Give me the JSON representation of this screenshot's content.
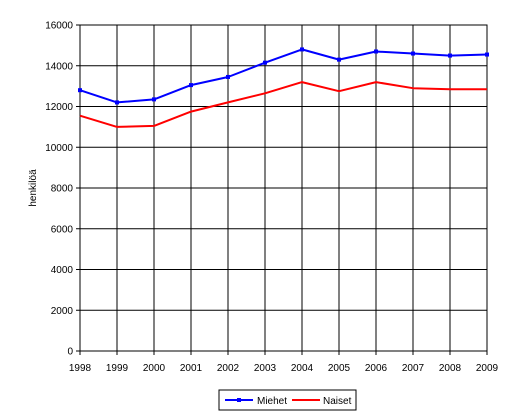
{
  "chart_data": {
    "type": "line",
    "title": "",
    "xlabel": "",
    "ylabel": "henkilöä",
    "x": [
      "1998",
      "1999",
      "2000",
      "2001",
      "2002",
      "2003",
      "2004",
      "2005",
      "2006",
      "2007",
      "2008",
      "2009"
    ],
    "ylim": [
      0,
      16000
    ],
    "yticks": [
      0,
      2000,
      4000,
      6000,
      8000,
      10000,
      12000,
      14000,
      16000
    ],
    "ytick_labels": [
      "0",
      "2000",
      "4000",
      "6000",
      "8000",
      "10000",
      "12000",
      "14000",
      "16000"
    ],
    "grid": true,
    "legend_position": "bottom",
    "series": [
      {
        "name": "Miehet",
        "color": "#0000ff",
        "markers": true,
        "values": [
          12800,
          12200,
          12350,
          13050,
          13450,
          14150,
          14800,
          14300,
          14700,
          14600,
          14500,
          14550
        ]
      },
      {
        "name": "Naiset",
        "color": "#ff0000",
        "markers": false,
        "values": [
          11550,
          11000,
          11050,
          11750,
          12200,
          12650,
          13200,
          12750,
          13200,
          12900,
          12850,
          12850
        ]
      }
    ]
  }
}
